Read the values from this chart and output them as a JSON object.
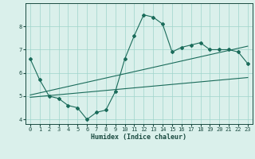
{
  "xlabel": "Humidex (Indice chaleur)",
  "x_values": [
    0,
    1,
    2,
    3,
    4,
    5,
    6,
    7,
    8,
    9,
    10,
    11,
    12,
    13,
    14,
    15,
    16,
    17,
    18,
    19,
    20,
    21,
    22,
    23
  ],
  "series1": [
    6.6,
    5.7,
    5.0,
    4.9,
    4.6,
    4.5,
    4.0,
    4.3,
    4.4,
    5.2,
    6.6,
    7.6,
    8.5,
    8.4,
    8.1,
    6.9,
    7.1,
    7.2,
    7.3,
    7.0,
    7.0,
    7.0,
    6.9,
    6.4
  ],
  "series2_x": [
    0,
    23
  ],
  "series2_y": [
    4.95,
    5.8
  ],
  "series3_x": [
    0,
    23
  ],
  "series3_y": [
    5.05,
    7.15
  ],
  "line_color": "#1a6b5a",
  "bg_color": "#daf0eb",
  "grid_color": "#9fd4cb",
  "text_color": "#1a4a40",
  "ylim": [
    3.8,
    9.0
  ],
  "xlim": [
    -0.5,
    23.5
  ],
  "yticks": [
    4,
    5,
    6,
    7,
    8
  ],
  "xticks": [
    0,
    1,
    2,
    3,
    4,
    5,
    6,
    7,
    8,
    9,
    10,
    11,
    12,
    13,
    14,
    15,
    16,
    17,
    18,
    19,
    20,
    21,
    22,
    23
  ]
}
